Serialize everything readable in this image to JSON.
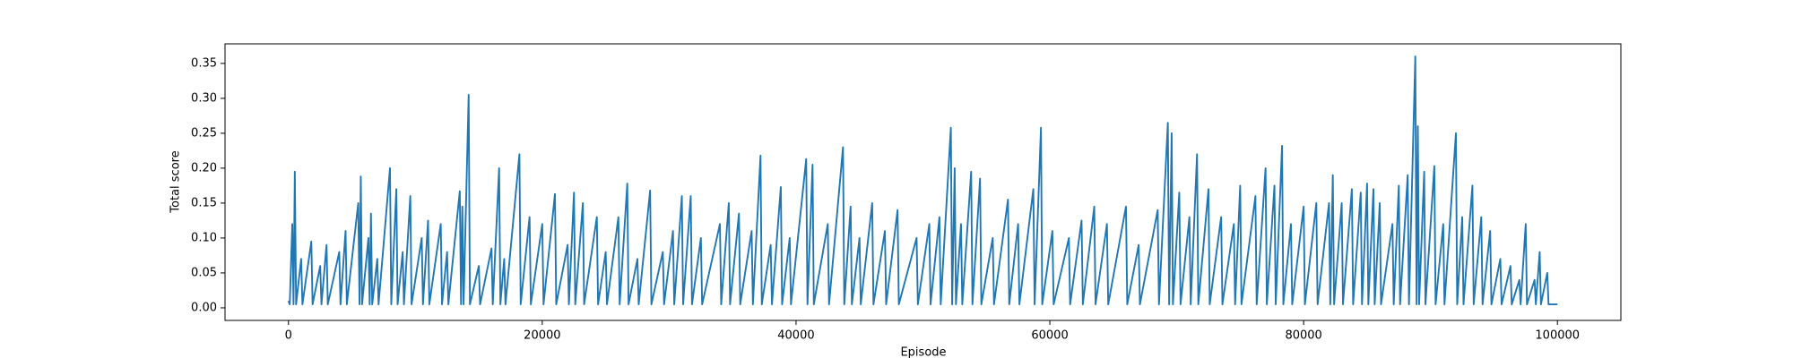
{
  "chart_data": {
    "type": "line",
    "xlabel": "Episode",
    "ylabel": "Total score",
    "color": "#1f77b4",
    "xlim": [
      -5000,
      105000
    ],
    "ylim": [
      -0.018,
      0.378
    ],
    "xticks": [
      0,
      20000,
      40000,
      60000,
      80000,
      100000
    ],
    "yticks": [
      {
        "value": 0,
        "label": "0.00"
      },
      {
        "value": 0.05,
        "label": "0.05"
      },
      {
        "value": 0.1,
        "label": "0.10"
      },
      {
        "value": 0.15,
        "label": "0.15"
      },
      {
        "value": 0.2,
        "label": "0.20"
      },
      {
        "value": 0.25,
        "label": "0.25"
      },
      {
        "value": 0.3,
        "label": "0.30"
      },
      {
        "value": 0.35,
        "label": "0.35"
      }
    ],
    "x": [
      0,
      100,
      300,
      400,
      500,
      600,
      1000,
      1100,
      1800,
      1900,
      2500,
      2600,
      3000,
      3100,
      4000,
      4100,
      4500,
      4600,
      5500,
      5600,
      5700,
      5800,
      6300,
      6400,
      6500,
      6600,
      7000,
      7100,
      8000,
      8100,
      8500,
      8600,
      9000,
      9100,
      9600,
      9700,
      10500,
      10600,
      11000,
      11100,
      12000,
      12100,
      12500,
      12600,
      13500,
      13600,
      13700,
      13800,
      14200,
      14300,
      15000,
      15100,
      16000,
      16100,
      16600,
      16700,
      17000,
      17100,
      18200,
      18300,
      19000,
      19100,
      20000,
      20100,
      21000,
      21100,
      22000,
      22100,
      22500,
      22600,
      23200,
      23300,
      24300,
      24400,
      25000,
      25100,
      26000,
      26100,
      26700,
      26800,
      27500,
      27600,
      28500,
      28600,
      29500,
      29600,
      30300,
      30400,
      31000,
      31100,
      31700,
      31800,
      32500,
      32600,
      34000,
      34100,
      34700,
      34800,
      35500,
      35600,
      36500,
      36600,
      37200,
      37300,
      38000,
      38100,
      38800,
      38900,
      39500,
      39600,
      40800,
      40900,
      41300,
      41400,
      42500,
      42600,
      43700,
      43800,
      44300,
      44400,
      45000,
      45100,
      46000,
      46100,
      47000,
      47100,
      48000,
      48100,
      49500,
      49600,
      50500,
      50600,
      51300,
      51400,
      52200,
      52300,
      52500,
      52600,
      53000,
      53100,
      53800,
      53900,
      54500,
      54600,
      55500,
      55600,
      56700,
      56800,
      57500,
      57600,
      58700,
      58800,
      59300,
      59400,
      60200,
      60300,
      61500,
      61600,
      62500,
      62600,
      63500,
      63600,
      64500,
      64600,
      66000,
      66100,
      67000,
      67100,
      68500,
      68600,
      69300,
      69400,
      69600,
      69700,
      70200,
      70300,
      71000,
      71100,
      71600,
      71700,
      72500,
      72600,
      73500,
      73600,
      74500,
      74600,
      75000,
      75100,
      76200,
      76300,
      77000,
      77100,
      77700,
      77800,
      78300,
      78400,
      79000,
      79100,
      80000,
      80100,
      81000,
      81100,
      82000,
      82100,
      82300,
      82400,
      83000,
      83100,
      83800,
      83900,
      84500,
      84600,
      85000,
      85100,
      85500,
      85600,
      86000,
      86100,
      87000,
      87100,
      87500,
      87600,
      88200,
      88300,
      88800,
      88900,
      89000,
      89100,
      89500,
      89600,
      90300,
      90400,
      91000,
      91100,
      92000,
      92100,
      92500,
      92600,
      93300,
      93400,
      94000,
      94100,
      94700,
      94800,
      95500,
      95600,
      96300,
      96400,
      97000,
      97100,
      97500,
      97600,
      98200,
      98300,
      98600,
      98700,
      99200,
      99300,
      100000
    ],
    "values": [
      0.01,
      0.005,
      0.12,
      0.005,
      0.195,
      0.005,
      0.07,
      0.005,
      0.095,
      0.005,
      0.06,
      0.005,
      0.09,
      0.005,
      0.08,
      0.005,
      0.11,
      0.005,
      0.15,
      0.005,
      0.188,
      0.005,
      0.1,
      0.005,
      0.135,
      0.005,
      0.07,
      0.005,
      0.2,
      0.005,
      0.17,
      0.005,
      0.08,
      0.005,
      0.16,
      0.005,
      0.1,
      0.005,
      0.125,
      0.005,
      0.12,
      0.005,
      0.08,
      0.005,
      0.167,
      0.005,
      0.145,
      0.005,
      0.305,
      0.005,
      0.06,
      0.005,
      0.085,
      0.005,
      0.2,
      0.005,
      0.07,
      0.005,
      0.22,
      0.005,
      0.13,
      0.005,
      0.12,
      0.005,
      0.163,
      0.005,
      0.09,
      0.005,
      0.165,
      0.005,
      0.15,
      0.005,
      0.13,
      0.005,
      0.08,
      0.005,
      0.13,
      0.005,
      0.178,
      0.005,
      0.07,
      0.005,
      0.168,
      0.005,
      0.08,
      0.005,
      0.11,
      0.005,
      0.16,
      0.005,
      0.16,
      0.005,
      0.1,
      0.005,
      0.12,
      0.005,
      0.15,
      0.005,
      0.135,
      0.005,
      0.11,
      0.005,
      0.218,
      0.005,
      0.09,
      0.005,
      0.173,
      0.005,
      0.1,
      0.005,
      0.213,
      0.005,
      0.205,
      0.005,
      0.12,
      0.005,
      0.23,
      0.005,
      0.145,
      0.005,
      0.1,
      0.005,
      0.15,
      0.005,
      0.11,
      0.005,
      0.14,
      0.005,
      0.1,
      0.005,
      0.12,
      0.005,
      0.13,
      0.005,
      0.258,
      0.005,
      0.2,
      0.005,
      0.12,
      0.005,
      0.195,
      0.005,
      0.185,
      0.005,
      0.1,
      0.005,
      0.155,
      0.005,
      0.12,
      0.005,
      0.17,
      0.005,
      0.258,
      0.005,
      0.11,
      0.005,
      0.1,
      0.005,
      0.125,
      0.005,
      0.145,
      0.005,
      0.12,
      0.005,
      0.145,
      0.005,
      0.09,
      0.005,
      0.14,
      0.005,
      0.265,
      0.005,
      0.25,
      0.005,
      0.165,
      0.005,
      0.13,
      0.005,
      0.22,
      0.005,
      0.17,
      0.005,
      0.13,
      0.005,
      0.12,
      0.005,
      0.175,
      0.005,
      0.16,
      0.005,
      0.2,
      0.005,
      0.175,
      0.005,
      0.232,
      0.005,
      0.12,
      0.005,
      0.145,
      0.005,
      0.15,
      0.005,
      0.15,
      0.005,
      0.19,
      0.005,
      0.15,
      0.005,
      0.17,
      0.005,
      0.165,
      0.005,
      0.178,
      0.005,
      0.17,
      0.005,
      0.15,
      0.005,
      0.12,
      0.005,
      0.175,
      0.005,
      0.19,
      0.005,
      0.36,
      0.005,
      0.26,
      0.005,
      0.195,
      0.005,
      0.203,
      0.005,
      0.12,
      0.005,
      0.25,
      0.005,
      0.13,
      0.005,
      0.175,
      0.005,
      0.13,
      0.005,
      0.11,
      0.005,
      0.07,
      0.005,
      0.06,
      0.005,
      0.04,
      0.005,
      0.12,
      0.005,
      0.04,
      0.005,
      0.08,
      0.005,
      0.05,
      0.005,
      0.005
    ]
  }
}
